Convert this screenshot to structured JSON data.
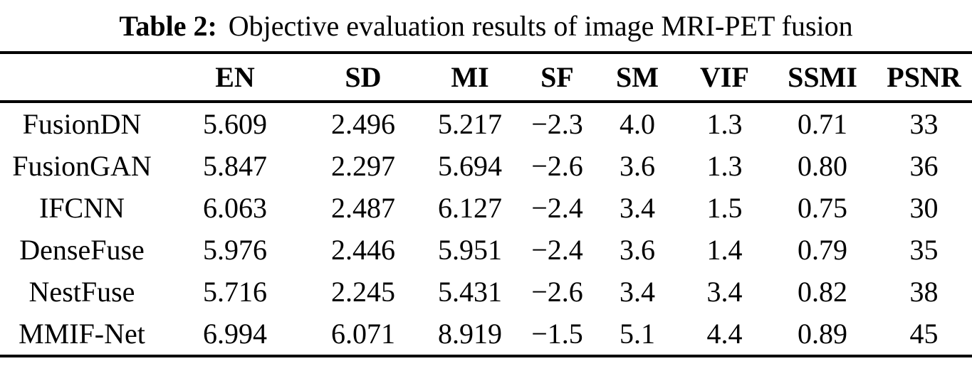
{
  "caption": {
    "label": "Table 2:",
    "text": "Objective evaluation results of image MRI-PET fusion"
  },
  "table": {
    "columns": [
      "",
      "EN",
      "SD",
      "MI",
      "SF",
      "SM",
      "VIF",
      "SSMI",
      "PSNR"
    ],
    "rows": [
      {
        "method": "FusionDN",
        "values": [
          "5.609",
          "2.496",
          "5.217",
          "−2.3",
          "4.0",
          "1.3",
          "0.71",
          "33"
        ]
      },
      {
        "method": "FusionGAN",
        "values": [
          "5.847",
          "2.297",
          "5.694",
          "−2.6",
          "3.6",
          "1.3",
          "0.80",
          "36"
        ]
      },
      {
        "method": "IFCNN",
        "values": [
          "6.063",
          "2.487",
          "6.127",
          "−2.4",
          "3.4",
          "1.5",
          "0.75",
          "30"
        ]
      },
      {
        "method": "DenseFuse",
        "values": [
          "5.976",
          "2.446",
          "5.951",
          "−2.4",
          "3.6",
          "1.4",
          "0.79",
          "35"
        ]
      },
      {
        "method": "NestFuse",
        "values": [
          "5.716",
          "2.245",
          "5.431",
          "−2.6",
          "3.4",
          "3.4",
          "0.82",
          "38"
        ]
      },
      {
        "method": "MMIF-Net",
        "values": [
          "6.994",
          "6.071",
          "8.919",
          "−1.5",
          "5.1",
          "4.4",
          "0.89",
          "45"
        ]
      }
    ]
  },
  "colors": {
    "text": "#000000",
    "background": "#ffffff",
    "rule": "#000000"
  }
}
